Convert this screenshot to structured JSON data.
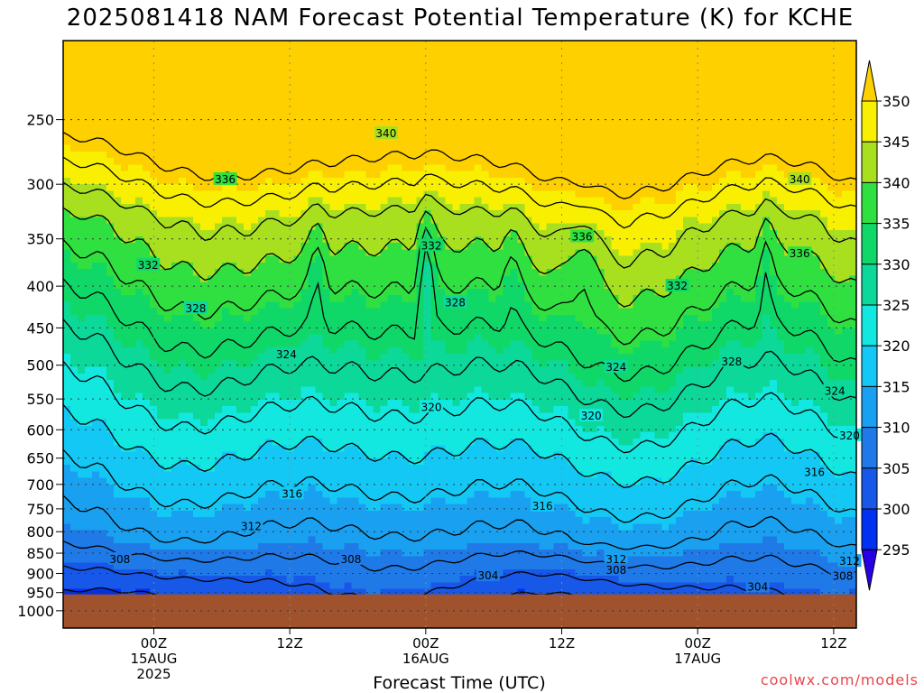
{
  "chart_data": {
    "type": "heatmap",
    "title": "2025081418 NAM Forecast Potential Temperature (K) for KCHE",
    "xlabel": "Forecast Time (UTC)",
    "ylabel": "",
    "y_scale": "log-pressure",
    "y_ticks": [
      250,
      300,
      350,
      400,
      450,
      500,
      550,
      600,
      650,
      700,
      750,
      800,
      850,
      900,
      950,
      1000
    ],
    "y_range": [
      200,
      1050
    ],
    "x_range_hours": [
      -8,
      62
    ],
    "x_ticks": [
      {
        "hour": 0,
        "label1": "00Z",
        "label2": "15AUG",
        "label3": "2025"
      },
      {
        "hour": 12,
        "label1": "12Z",
        "label2": "",
        "label3": ""
      },
      {
        "hour": 24,
        "label1": "00Z",
        "label2": "16AUG",
        "label3": ""
      },
      {
        "hour": 36,
        "label1": "12Z",
        "label2": "",
        "label3": ""
      },
      {
        "hour": 48,
        "label1": "00Z",
        "label2": "17AUG",
        "label3": ""
      },
      {
        "hour": 60,
        "label1": "12Z",
        "label2": "",
        "label3": ""
      },
      {
        "hour": 72,
        "label1": "00Z",
        "label2": "18AUG",
        "label3": ""
      }
    ],
    "colorbar": {
      "levels": [
        295,
        300,
        305,
        310,
        315,
        320,
        325,
        330,
        335,
        340,
        345,
        350
      ],
      "colors": [
        "#2800e6",
        "#0030f0",
        "#1858e8",
        "#1f7ae8",
        "#1aa0f0",
        "#14c8f5",
        "#12e8e0",
        "#0cd89a",
        "#10d868",
        "#30e040",
        "#a8e020",
        "#f8f000",
        "#ffd000"
      ]
    },
    "surface_pressure": 955,
    "surface_color": "#a0522d",
    "contour_interval": 4,
    "contour_labels": [
      {
        "text": "340",
        "hour": 20.5,
        "p": 260
      },
      {
        "text": "340",
        "hour": 57,
        "p": 296
      },
      {
        "text": "336",
        "hour": 6.3,
        "p": 296
      },
      {
        "text": "336",
        "hour": 37.8,
        "p": 348
      },
      {
        "text": "336",
        "hour": 57,
        "p": 365
      },
      {
        "text": "332",
        "hour": -0.5,
        "p": 377
      },
      {
        "text": "332",
        "hour": 24.5,
        "p": 357
      },
      {
        "text": "332",
        "hour": 46.2,
        "p": 400
      },
      {
        "text": "328",
        "hour": 3.7,
        "p": 426
      },
      {
        "text": "328",
        "hour": 26.6,
        "p": 419
      },
      {
        "text": "328",
        "hour": 51,
        "p": 495
      },
      {
        "text": "324",
        "hour": 11.7,
        "p": 485
      },
      {
        "text": "324",
        "hour": 40.8,
        "p": 503
      },
      {
        "text": "324",
        "hour": 60.1,
        "p": 538
      },
      {
        "text": "320",
        "hour": 24.5,
        "p": 563
      },
      {
        "text": "320",
        "hour": 38.6,
        "p": 577
      },
      {
        "text": "320",
        "hour": 61.4,
        "p": 610
      },
      {
        "text": "316",
        "hour": 58.3,
        "p": 677
      },
      {
        "text": "316",
        "hour": 12.2,
        "p": 719
      },
      {
        "text": "316",
        "hour": 34.3,
        "p": 744
      },
      {
        "text": "312",
        "hour": 8.6,
        "p": 788
      },
      {
        "text": "312",
        "hour": 40.8,
        "p": 865
      },
      {
        "text": "312",
        "hour": 61.4,
        "p": 870
      },
      {
        "text": "308",
        "hour": -3,
        "p": 865
      },
      {
        "text": "308",
        "hour": 17.4,
        "p": 865
      },
      {
        "text": "308",
        "hour": 40.8,
        "p": 892
      },
      {
        "text": "308",
        "hour": 60.8,
        "p": 907
      },
      {
        "text": "304",
        "hour": 29.5,
        "p": 906
      },
      {
        "text": "304",
        "hour": 53.3,
        "p": 935
      }
    ]
  },
  "credit": "coolwx.com/models"
}
